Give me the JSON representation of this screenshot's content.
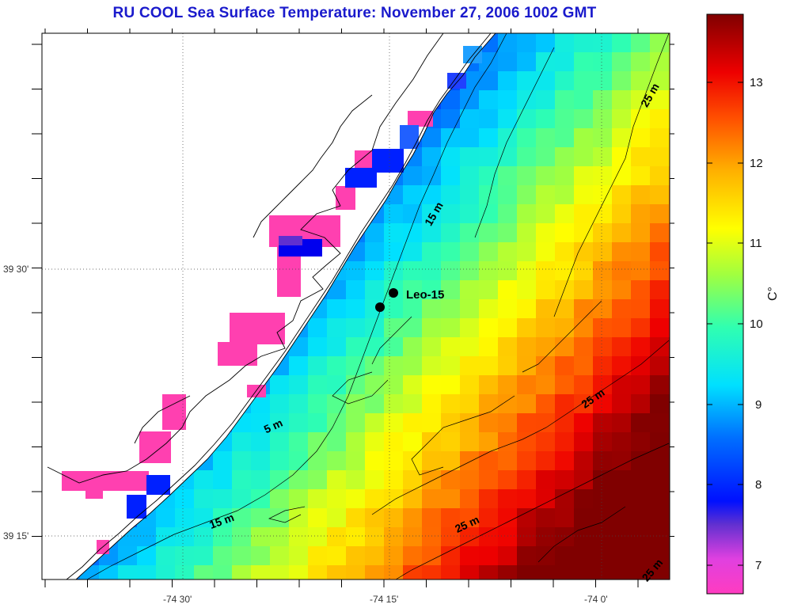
{
  "title": "RU COOL  Sea Surface Temperature:  November 27, 2006 1002 GMT",
  "colorbar": {
    "unit": "C°",
    "ticks": [
      "13",
      "12",
      "11",
      "10",
      "9",
      "8",
      "7"
    ],
    "min": 6.6,
    "max": 13.8
  },
  "axes": {
    "x_labels": [
      "-74 30'",
      "-74 15'",
      "-74 0'"
    ],
    "y_labels": [
      "39 30'",
      "39 15'"
    ]
  },
  "station": {
    "label": "Leo-15"
  },
  "depth_labels": [
    "25 m",
    "15 m",
    "5 m",
    "25 m",
    "15 m",
    "25 m",
    "25 m"
  ],
  "colors": {
    "title": "#1a1acc",
    "land": "#ffffff",
    "coast_line": "#000000",
    "flag": "#ff40b0"
  }
}
